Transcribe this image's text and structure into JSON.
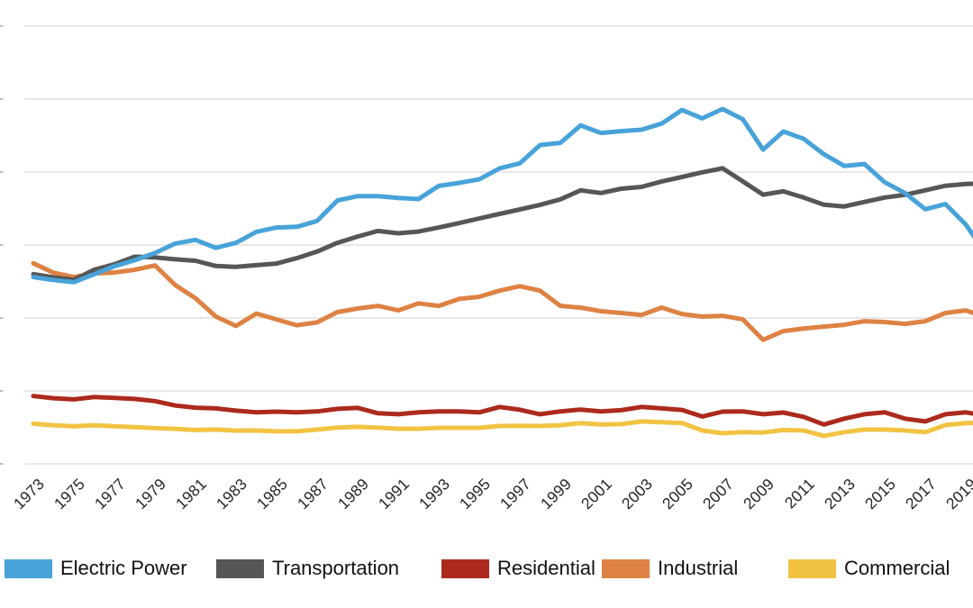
{
  "chart_data": {
    "type": "line",
    "x": [
      1973,
      1974,
      1975,
      1976,
      1977,
      1978,
      1979,
      1980,
      1981,
      1982,
      1983,
      1984,
      1985,
      1986,
      1987,
      1988,
      1989,
      1990,
      1991,
      1992,
      1993,
      1994,
      1995,
      1996,
      1997,
      1998,
      1999,
      2000,
      2001,
      2002,
      2003,
      2004,
      2005,
      2006,
      2007,
      2008,
      2009,
      2010,
      2011,
      2012,
      2013,
      2014,
      2015,
      2016,
      2017,
      2018,
      2019,
      2020
    ],
    "x_tick_labels": [
      "1973",
      "1975",
      "1977",
      "1979",
      "1981",
      "1983",
      "1985",
      "1987",
      "1989",
      "1991",
      "1993",
      "1995",
      "1997",
      "1999",
      "2001",
      "2003",
      "2005",
      "2007",
      "2009",
      "2011",
      "2013",
      "2015",
      "2017",
      "2019"
    ],
    "series": [
      {
        "name": "Electric Power",
        "color": "#47A3D9",
        "values": [
          1280,
          1260,
          1245,
          1300,
          1355,
          1395,
          1445,
          1510,
          1535,
          1480,
          1515,
          1590,
          1620,
          1625,
          1665,
          1805,
          1835,
          1835,
          1822,
          1815,
          1905,
          1925,
          1950,
          2025,
          2060,
          2185,
          2200,
          2320,
          2268,
          2280,
          2290,
          2332,
          2425,
          2368,
          2432,
          2362,
          2154,
          2278,
          2228,
          2122,
          2042,
          2055,
          1930,
          1856,
          1745,
          1780,
          1640,
          1440
        ]
      },
      {
        "name": "Transportation",
        "color": "#565656",
        "values": [
          1300,
          1278,
          1262,
          1330,
          1368,
          1420,
          1415,
          1402,
          1392,
          1356,
          1350,
          1362,
          1373,
          1410,
          1455,
          1515,
          1558,
          1596,
          1580,
          1592,
          1620,
          1650,
          1682,
          1713,
          1744,
          1775,
          1813,
          1875,
          1856,
          1886,
          1898,
          1936,
          1966,
          1998,
          2026,
          1936,
          1845,
          1868,
          1825,
          1776,
          1764,
          1795,
          1825,
          1844,
          1875,
          1906,
          1918,
          1922
        ]
      },
      {
        "name": "Residential",
        "color": "#AC2A1D",
        "values": [
          465,
          450,
          442,
          458,
          452,
          445,
          430,
          400,
          385,
          380,
          365,
          353,
          358,
          353,
          359,
          377,
          384,
          347,
          340,
          353,
          359,
          359,
          353,
          390,
          371,
          340,
          360,
          372,
          360,
          368,
          390,
          380,
          370,
          325,
          358,
          360,
          340,
          352,
          322,
          270,
          310,
          340,
          353,
          310,
          291,
          340,
          353,
          330
        ]
      },
      {
        "name": "Industrial",
        "color": "#DE8244",
        "values": [
          1375,
          1310,
          1280,
          1305,
          1312,
          1330,
          1360,
          1225,
          1135,
          1010,
          945,
          1030,
          990,
          950,
          970,
          1040,
          1065,
          1083,
          1052,
          1100,
          1083,
          1130,
          1145,
          1187,
          1218,
          1187,
          1083,
          1071,
          1046,
          1034,
          1021,
          1071,
          1027,
          1009,
          1015,
          990,
          850,
          910,
          928,
          941,
          953,
          978,
          972,
          959,
          978,
          1034,
          1052,
          1005
        ]
      },
      {
        "name": "Commercial",
        "color": "#F2C342",
        "values": [
          275,
          265,
          258,
          265,
          258,
          252,
          245,
          240,
          232,
          235,
          228,
          229,
          223,
          223,
          235,
          248,
          254,
          248,
          241,
          241,
          247,
          247,
          247,
          260,
          260,
          260,
          265,
          279,
          270,
          272,
          291,
          285,
          280,
          229,
          210,
          217,
          215,
          232,
          229,
          192,
          217,
          235,
          235,
          229,
          217,
          266,
          279,
          285
        ]
      }
    ],
    "title": "",
    "xlabel": "",
    "ylabel": "",
    "ylim": [
      0,
      3000
    ],
    "y_gridline_step": 500,
    "y_axis_labels_visible": false,
    "grid": "horizontal",
    "legend_position": "bottom"
  },
  "style": {
    "gridline_color": "#DADADA",
    "tick_stub_color": "#BDBDBD",
    "tick_label_color": "#262626"
  }
}
